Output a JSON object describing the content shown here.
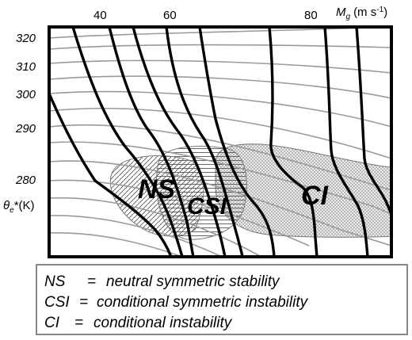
{
  "figure": {
    "top_axis": {
      "label_main": "M",
      "label_sub": "g",
      "label_unit": "(m s",
      "label_exp": "-1",
      "label_close": ")",
      "ticks": [
        "40",
        "60",
        "80"
      ]
    },
    "left_axis": {
      "ticks": [
        "320",
        "310",
        "300",
        "290",
        "280"
      ],
      "label_main": "θ",
      "label_sub": "e",
      "label_rest": "*(K)"
    },
    "regions": [
      {
        "id": "ns",
        "label": "NS",
        "fill": "diagonal-hatch"
      },
      {
        "id": "csi",
        "label": "CSI",
        "fill": "horizontal-hatch"
      },
      {
        "id": "ci",
        "label": "CI",
        "fill": "stipple"
      }
    ],
    "legend": [
      {
        "abbr": "NS",
        "eq": "=",
        "text": "neutral symmetric stability"
      },
      {
        "abbr": "CSI",
        "eq": "=",
        "text": "conditional symmetric instability"
      },
      {
        "abbr": "CI",
        "eq": "=",
        "text": "conditional instability"
      }
    ],
    "colors": {
      "frame": "#000000",
      "momentum_contours": "#000000",
      "theta_contours": "#9a9a9a",
      "region_outline": "#777777"
    }
  }
}
